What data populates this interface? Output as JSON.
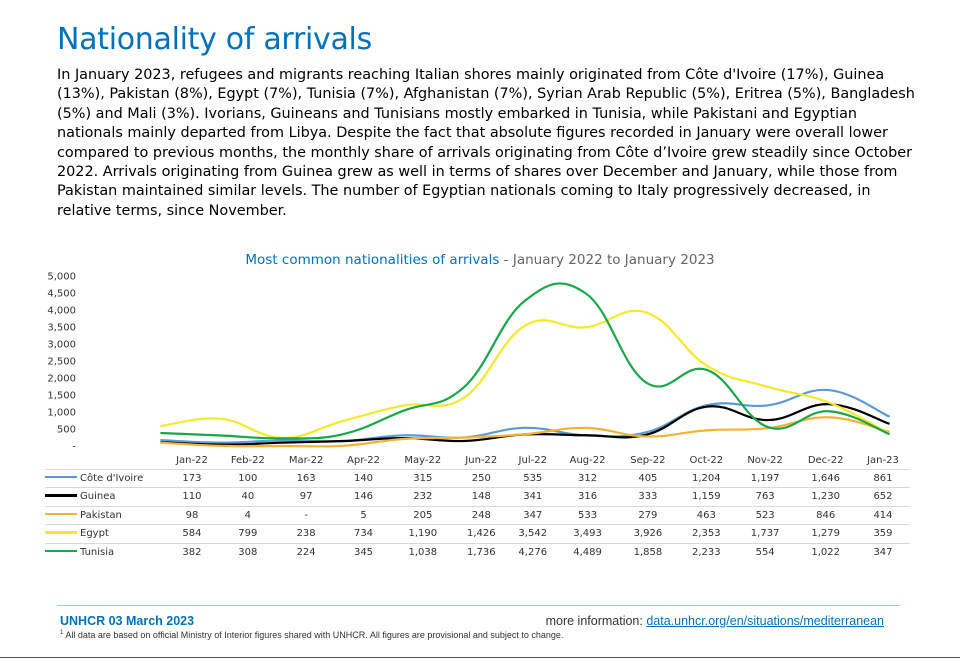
{
  "page": {
    "title": "Nationality of arrivals",
    "intro": "In January 2023, refugees and migrants reaching Italian shores mainly originated from Côte d'Ivoire (17%), Guinea (13%), Pakistan (8%), Egypt (7%), Tunisia (7%), Afghanistan (7%), Syrian Arab Republic (5%), Eritrea (5%), Bangladesh (5%) and Mali (3%). Ivorians, Guineans and Tunisians mostly embarked in Tunisia, while Pakistani and Egyptian nationals mainly departed from Libya. Despite the fact that absolute figures recorded in January were overall lower compared to previous months, the monthly share of arrivals originating from Côte d’Ivoire grew steadily since October 2022. Arrivals originating from Guinea grew as well in terms of shares over December and January, while those from Pakistan maintained similar levels. The number of Egyptian nationals coming to Italy progressively decreased, in relative terms, since November."
  },
  "chart_data": {
    "type": "line",
    "title": "Most common nationalities of arrivals",
    "subtitle": "- January 2022 to January 2023",
    "categories": [
      "Jan-22",
      "Feb-22",
      "Mar-22",
      "Apr-22",
      "May-22",
      "Jun-22",
      "Jul-22",
      "Aug-22",
      "Sep-22",
      "Oct-22",
      "Nov-22",
      "Dec-22",
      "Jan-23"
    ],
    "ylim": [
      0,
      5000
    ],
    "yticks": [
      0,
      500,
      1000,
      1500,
      2000,
      2500,
      3000,
      3500,
      4000,
      4500,
      5000
    ],
    "ytick_labels": [
      "-",
      "500",
      "1,000",
      "1,500",
      "2,000",
      "2,500",
      "3,000",
      "3,500",
      "4,000",
      "4,500",
      "5,000"
    ],
    "series": [
      {
        "name": "Côte d'Ivoire",
        "color": "#5b9bd5",
        "values": [
          173,
          100,
          163,
          140,
          315,
          250,
          535,
          312,
          405,
          1204,
          1197,
          1646,
          861
        ],
        "labels": [
          "173",
          "100",
          "163",
          "140",
          "315",
          "250",
          "535",
          "312",
          "405",
          "1,204",
          "1,197",
          "1,646",
          "861"
        ]
      },
      {
        "name": "Guinea",
        "color": "#000000",
        "values": [
          110,
          40,
          97,
          146,
          232,
          148,
          341,
          316,
          333,
          1159,
          763,
          1230,
          652
        ],
        "labels": [
          "110",
          "40",
          "97",
          "146",
          "232",
          "148",
          "341",
          "316",
          "333",
          "1,159",
          "763",
          "1,230",
          "652"
        ]
      },
      {
        "name": "Pakistan",
        "color": "#f5b335",
        "values": [
          98,
          4,
          0,
          5,
          205,
          248,
          347,
          533,
          279,
          463,
          523,
          846,
          414
        ],
        "labels": [
          "98",
          "4",
          "-",
          "5",
          "205",
          "248",
          "347",
          "533",
          "279",
          "463",
          "523",
          "846",
          "414"
        ]
      },
      {
        "name": "Egypt",
        "color": "#f5e92a",
        "values": [
          584,
          799,
          238,
          734,
          1190,
          1426,
          3542,
          3493,
          3926,
          2353,
          1737,
          1279,
          359
        ],
        "labels": [
          "584",
          "799",
          "238",
          "734",
          "1,190",
          "1,426",
          "3,542",
          "3,493",
          "3,926",
          "2,353",
          "1,737",
          "1,279",
          "359"
        ]
      },
      {
        "name": "Tunisia",
        "color": "#1aa64a",
        "values": [
          382,
          308,
          224,
          345,
          1038,
          1736,
          4276,
          4489,
          1858,
          2233,
          554,
          1022,
          347
        ],
        "labels": [
          "382",
          "308",
          "224",
          "345",
          "1,038",
          "1,736",
          "4,276",
          "4,489",
          "1,858",
          "2,233",
          "554",
          "1,022",
          "347"
        ]
      }
    ]
  },
  "footer": {
    "source": "UNHCR 03 March 2023",
    "more_info": "more information:",
    "link": "data.unhcr.org/en/situations/mediterranean",
    "footnote_mark": "1",
    "footnote": " All data are based on official Ministry of Interior figures shared with UNHCR. All figures are provisional and subject to change."
  }
}
